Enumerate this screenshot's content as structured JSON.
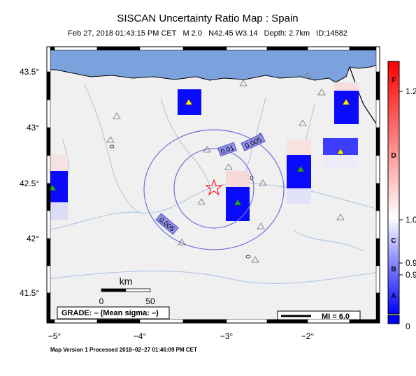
{
  "title": "SISCAN Uncertainty Ratio Map : Spain",
  "subtitle": "Feb 27, 2018 01:43:15 PM CET   M 2.0   N42.45 W3.14   Depth: 2.7km   ID:14582",
  "lat_labels": [
    "43.5°",
    "43°",
    "42.5°",
    "42°",
    "41.5°"
  ],
  "lon_labels": [
    "−5°",
    "−4°",
    "−3°",
    "−2°"
  ],
  "contour_labels": [
    "0.01",
    "0.005",
    "0.005"
  ],
  "scale_bar": {
    "unit": "km",
    "start": "0",
    "end": "50"
  },
  "grade": "GRADE: – (Mean sigma: –)",
  "magnitude_legend": "MI = 6.0",
  "colorbar": {
    "grades": [
      "F",
      "D",
      "C",
      "B",
      "A"
    ],
    "labels": [
      "1.2",
      "1.0",
      "0.9",
      "0.9",
      "0"
    ]
  },
  "footer": "Map Version 1 Processed 2018–02–27 01:46:09 PM CET"
}
